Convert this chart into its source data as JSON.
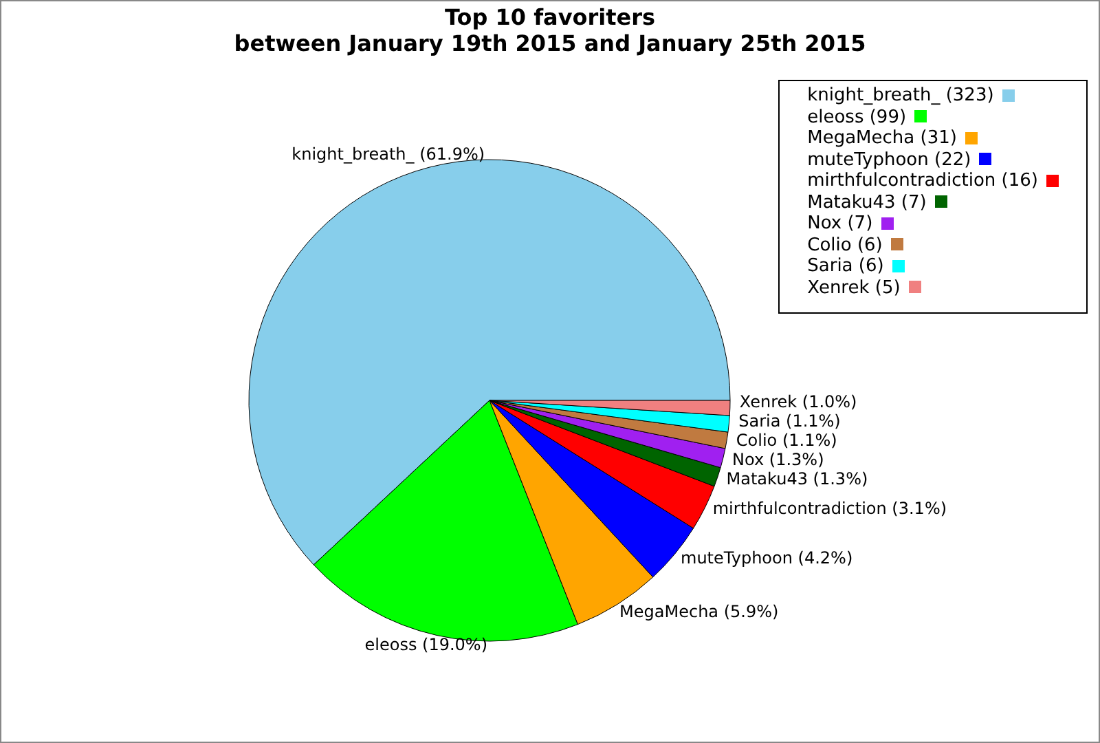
{
  "chart_data": {
    "type": "pie",
    "title": "Top 10 favoriters",
    "subtitle": "between January 19th 2015 and January 25th 2015",
    "categories": [
      "knight_breath_ (323)",
      "eleoss (99)",
      "MegaMecha (31)",
      "muteTyphoon (22)",
      "mirthfulcontradiction (16)",
      "Mataku43 (7)",
      "Nox (7)",
      "Colio (6)",
      "Saria (6)",
      "Xenrek (5)"
    ],
    "values": [
      61.9,
      19.0,
      5.9,
      4.2,
      3.1,
      1.3,
      1.3,
      1.1,
      1.1,
      1.0
    ],
    "colors": [
      "#87ceeb",
      "#00ff00",
      "#ffa500",
      "#0000ff",
      "#ff0000",
      "#006400",
      "#a020f0",
      "#c07a40",
      "#00ffff",
      "#f08080"
    ],
    "value_labels": [
      "knight_breath_ (61.9%)",
      "eleoss (19.0%)",
      "MegaMecha (5.9%)",
      "muteTyphoon (4.2%)",
      "mirthfulcontradiction (3.1%)",
      "Mataku43 (1.3%)",
      "Nox (1.3%)",
      "Colio (1.1%)",
      "Saria (1.1%)",
      "Xenrek (1.0%)"
    ],
    "legend": "top right"
  }
}
